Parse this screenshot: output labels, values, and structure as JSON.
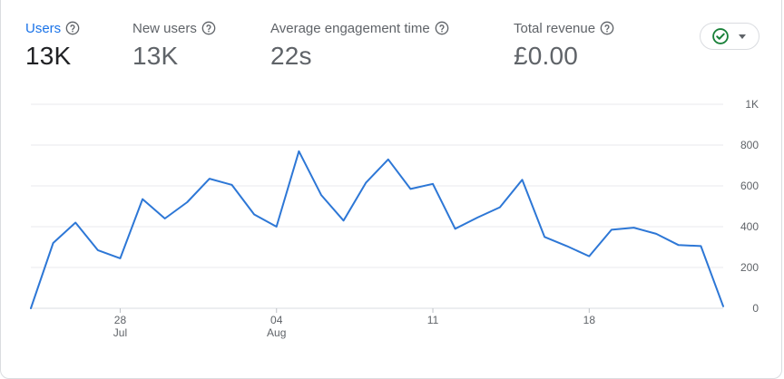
{
  "metrics": [
    {
      "label": "Users",
      "value": "13K",
      "active": true
    },
    {
      "label": "New users",
      "value": "13K",
      "active": false
    },
    {
      "label": "Average engagement time",
      "value": "22s",
      "active": false
    },
    {
      "label": "Total revenue",
      "value": "£0.00",
      "active": false
    }
  ],
  "icons": {
    "help": "help-circle-icon",
    "status": "check-circle-icon",
    "dropdown": "caret-down-icon"
  },
  "colors": {
    "accent": "#1a73e8",
    "line": "#2d77d6",
    "status_green": "#188038",
    "grid": "#e8eaed",
    "text_muted": "#5f6368"
  },
  "chart_data": {
    "type": "line",
    "title": "",
    "xlabel": "",
    "ylabel": "",
    "ylim": [
      0,
      1000
    ],
    "y_ticks": [
      0,
      200,
      400,
      600,
      800,
      1000
    ],
    "y_tick_labels": [
      "0",
      "200",
      "400",
      "600",
      "800",
      "1K"
    ],
    "x": [
      "2024-07-24",
      "2024-07-25",
      "2024-07-26",
      "2024-07-27",
      "2024-07-28",
      "2024-07-29",
      "2024-07-30",
      "2024-07-31",
      "2024-08-01",
      "2024-08-02",
      "2024-08-03",
      "2024-08-04",
      "2024-08-05",
      "2024-08-06",
      "2024-08-07",
      "2024-08-08",
      "2024-08-09",
      "2024-08-10",
      "2024-08-11",
      "2024-08-12",
      "2024-08-13",
      "2024-08-14",
      "2024-08-15",
      "2024-08-16",
      "2024-08-17",
      "2024-08-18",
      "2024-08-19",
      "2024-08-20",
      "2024-08-21",
      "2024-08-22",
      "2024-08-23",
      "2024-08-24"
    ],
    "x_tick_labels": [
      {
        "date": "2024-07-28",
        "day": "28",
        "month": "Jul"
      },
      {
        "date": "2024-08-04",
        "day": "04",
        "month": "Aug"
      },
      {
        "date": "2024-08-11",
        "day": "11",
        "month": ""
      },
      {
        "date": "2024-08-18",
        "day": "18",
        "month": ""
      }
    ],
    "series": [
      {
        "values": [
          0,
          320,
          420,
          285,
          245,
          535,
          440,
          520,
          635,
          605,
          460,
          400,
          770,
          555,
          430,
          615,
          730,
          585,
          610,
          390,
          445,
          495,
          630,
          350,
          305,
          255,
          385,
          395,
          365,
          310,
          305,
          10
        ]
      }
    ],
    "grid": true,
    "legend": "none"
  }
}
